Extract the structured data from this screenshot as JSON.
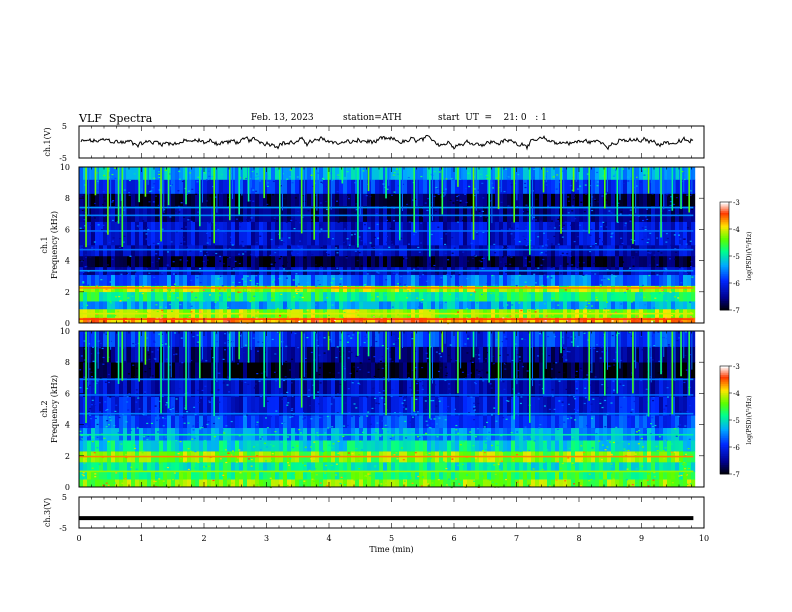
{
  "header": {
    "title": "VLF  Spectra",
    "date": "Feb. 13, 2023",
    "station": "station=ATH",
    "start_ut": "start  UT  =    21: 0   : 1"
  },
  "chart_data": [
    {
      "type": "line",
      "panel": "ch1-waveform",
      "ylabel": "ch.1(V)",
      "yticks": [
        "5",
        "-5"
      ],
      "ylim": [
        -5,
        5
      ],
      "xlim": [
        0,
        10
      ],
      "data_end_min": 9.83,
      "series": [
        {
          "color": "#000000",
          "approx_level_V": 0,
          "approx_noise_V": 0.8
        }
      ]
    },
    {
      "type": "heatmap",
      "panel": "ch1-spectrogram",
      "ylabel_line1": "ch.1",
      "ylabel_line2": "Frequency  (kHz)",
      "yticks": [
        "0",
        "2",
        "4",
        "6",
        "8",
        "10"
      ],
      "ylim": [
        0,
        10
      ],
      "xlim": [
        0,
        10
      ],
      "colorbar": {
        "label": "log(PSD)(V²/Hz)",
        "ticks": [
          "-3",
          "-4",
          "-5",
          "-6",
          "-7"
        ],
        "range": [
          -7,
          -3
        ]
      },
      "stripes": [
        {
          "f1": 0,
          "f2": 0.35,
          "v": -3.6
        },
        {
          "f1": 0.35,
          "f2": 0.9,
          "v": -4.2
        },
        {
          "f1": 0.9,
          "f2": 1.4,
          "v": -5.3
        },
        {
          "f1": 1.4,
          "f2": 2.0,
          "v": -4.8
        },
        {
          "f1": 2.0,
          "f2": 2.4,
          "v": -4.2
        },
        {
          "f1": 2.4,
          "f2": 3.1,
          "v": -5.6
        },
        {
          "f1": 3.1,
          "f2": 3.6,
          "v": -6.3
        },
        {
          "f1": 3.6,
          "f2": 4.3,
          "v": -6.8
        },
        {
          "f1": 4.3,
          "f2": 5.0,
          "v": -6.3
        },
        {
          "f1": 5.0,
          "f2": 6.5,
          "v": -6.2
        },
        {
          "f1": 6.5,
          "f2": 7.5,
          "v": -6.5
        },
        {
          "f1": 7.5,
          "f2": 8.3,
          "v": -6.7
        },
        {
          "f1": 8.3,
          "f2": 9.2,
          "v": -5.9
        },
        {
          "f1": 9.2,
          "f2": 10,
          "v": -5.3
        }
      ],
      "lines": [
        {
          "f": 0.25,
          "v": -3.4
        },
        {
          "f": 0.6,
          "v": -4.0
        },
        {
          "f": 2.25,
          "v": -3.6
        },
        {
          "f": 3.35,
          "v": -5.4
        },
        {
          "f": 4.7,
          "v": -5.6
        },
        {
          "f": 5.9,
          "v": -5.6
        },
        {
          "f": 6.9,
          "v": -5.5
        },
        {
          "f": 7.4,
          "v": -5.4
        }
      ],
      "sferics_min": [
        0.1,
        0.25,
        0.45,
        0.62,
        0.68,
        0.95,
        1.05,
        1.3,
        1.42,
        1.7,
        1.92,
        2.15,
        2.4,
        2.55,
        2.7,
        2.95,
        3.2,
        3.55,
        3.75,
        3.98,
        4.2,
        4.45,
        4.62,
        4.9,
        5.12,
        5.35,
        5.6,
        5.8,
        6.05,
        6.3,
        6.55,
        6.7,
        6.95,
        7.2,
        7.42,
        7.7,
        7.9,
        8.15,
        8.4,
        8.6,
        8.85,
        9.1,
        9.3,
        9.48,
        9.62,
        9.75
      ]
    },
    {
      "type": "heatmap",
      "panel": "ch2-spectrogram",
      "ylabel_line1": "ch.2",
      "ylabel_line2": "Frequency  (kHz)",
      "yticks": [
        "0",
        "2",
        "4",
        "6",
        "8",
        "10"
      ],
      "ylim": [
        0,
        10
      ],
      "xlim": [
        0,
        10
      ],
      "colorbar": {
        "label": "log(PSD)(V²/Hz)",
        "ticks": [
          "-3",
          "-4",
          "-5",
          "-6",
          "-7"
        ],
        "range": [
          -7,
          -3
        ]
      },
      "stripes": [
        {
          "f1": 0,
          "f2": 0.5,
          "v": -4.3
        },
        {
          "f1": 0.5,
          "f2": 1.0,
          "v": -4.6
        },
        {
          "f1": 1.0,
          "f2": 1.6,
          "v": -4.9
        },
        {
          "f1": 1.6,
          "f2": 2.3,
          "v": -4.3
        },
        {
          "f1": 2.3,
          "f2": 3.0,
          "v": -5.0
        },
        {
          "f1": 3.0,
          "f2": 3.8,
          "v": -5.4
        },
        {
          "f1": 3.8,
          "f2": 4.6,
          "v": -5.8
        },
        {
          "f1": 4.6,
          "f2": 5.8,
          "v": -6.1
        },
        {
          "f1": 5.8,
          "f2": 7.0,
          "v": -6.3
        },
        {
          "f1": 7.0,
          "f2": 8.0,
          "v": -6.8
        },
        {
          "f1": 8.0,
          "f2": 9.0,
          "v": -6.5
        },
        {
          "f1": 9.0,
          "f2": 10,
          "v": -5.9
        }
      ],
      "lines": [
        {
          "f": 1.95,
          "v": -3.6
        },
        {
          "f": 1.0,
          "v": -4.2
        },
        {
          "f": 3.35,
          "v": -4.9
        },
        {
          "f": 4.7,
          "v": -5.5
        },
        {
          "f": 5.9,
          "v": -5.6
        },
        {
          "f": 6.9,
          "v": -5.5
        }
      ],
      "sferics_min": [
        0.1,
        0.25,
        0.45,
        0.62,
        0.68,
        0.95,
        1.05,
        1.3,
        1.42,
        1.7,
        1.92,
        2.15,
        2.4,
        2.55,
        2.7,
        2.95,
        3.2,
        3.55,
        3.75,
        3.98,
        4.2,
        4.45,
        4.62,
        4.9,
        5.12,
        5.35,
        5.6,
        5.8,
        6.05,
        6.3,
        6.55,
        6.7,
        6.95,
        7.2,
        7.42,
        7.7,
        7.9,
        8.15,
        8.4,
        8.6,
        8.85,
        9.1,
        9.3,
        9.48,
        9.62,
        9.75
      ]
    },
    {
      "type": "line",
      "panel": "ch3-waveform",
      "ylabel": "ch.3(V)",
      "yticks": [
        "5",
        "-5"
      ],
      "ylim": [
        -5,
        5
      ],
      "xlim": [
        0,
        10
      ],
      "xticks": [
        "0",
        "1",
        "2",
        "3",
        "4",
        "5",
        "6",
        "7",
        "8",
        "9",
        "10"
      ],
      "xlabel": "Time  (min)",
      "data_end_min": 9.83,
      "series": [
        {
          "color": "#000000",
          "level_V": -1.8
        }
      ]
    }
  ]
}
